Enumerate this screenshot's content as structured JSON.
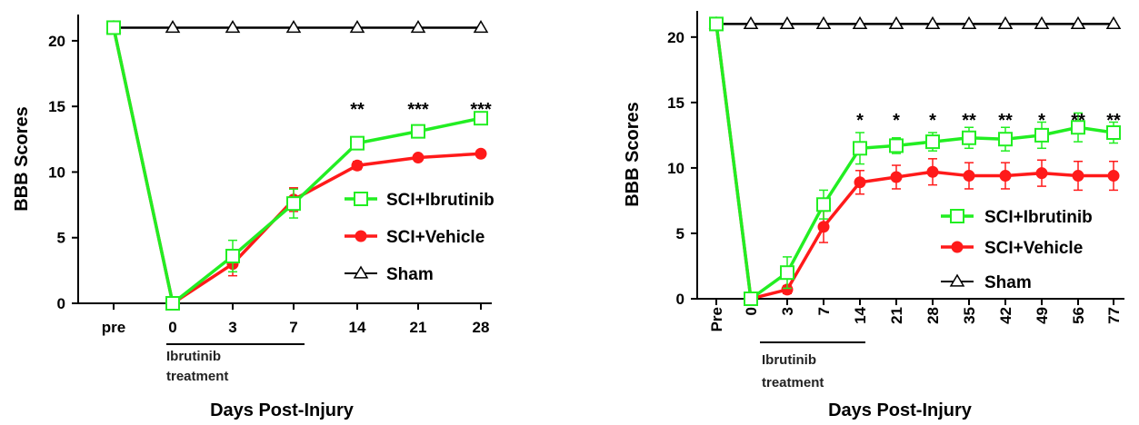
{
  "colors": {
    "ibrutinib": "#22ee22",
    "vehicle": "#ff1a1a",
    "sham": "#000000"
  },
  "chart_data": [
    {
      "type": "line",
      "ylabel": "BBB Scores",
      "xlabel": "Days Post-Injury",
      "ylim": [
        0,
        22
      ],
      "yticks": [
        0,
        5,
        10,
        15,
        20
      ],
      "categories": [
        "pre",
        "0",
        "3",
        "7",
        "14",
        "21",
        "28"
      ],
      "treatment_label": [
        "Ibrutinib",
        "treatment"
      ],
      "series": [
        {
          "name": "Sham",
          "marker": "open-triangle",
          "values": [
            21,
            21,
            21,
            21,
            21,
            21,
            21
          ]
        },
        {
          "name": "SCI+Vehicle",
          "marker": "filled-circle",
          "values": [
            21,
            0,
            3.0,
            7.9,
            10.5,
            11.1,
            11.4
          ],
          "errors": [
            0,
            0,
            0.9,
            0.9,
            0.3,
            0.2,
            0.2
          ]
        },
        {
          "name": "SCI+Ibrutinib",
          "marker": "open-square",
          "values": [
            21,
            0,
            3.6,
            7.6,
            12.2,
            13.1,
            14.1
          ],
          "errors": [
            0,
            0,
            1.2,
            1.1,
            0.3,
            0.3,
            0.2
          ]
        }
      ],
      "significance": [
        {
          "category": "14",
          "label": "**"
        },
        {
          "category": "21",
          "label": "***"
        },
        {
          "category": "28",
          "label": "***"
        }
      ],
      "legend_order": [
        "SCI+Ibrutinib",
        "SCI+Vehicle",
        "Sham"
      ]
    },
    {
      "type": "line",
      "ylabel": "BBB Scores",
      "xlabel": "Days Post-Injury",
      "ylim": [
        0,
        22
      ],
      "yticks": [
        0,
        5,
        10,
        15,
        20
      ],
      "categories": [
        "Pre",
        "0",
        "3",
        "7",
        "14",
        "21",
        "28",
        "35",
        "42",
        "49",
        "56",
        "77"
      ],
      "treatment_label": [
        "Ibrutinib",
        "treatment"
      ],
      "series": [
        {
          "name": "Sham",
          "marker": "open-triangle",
          "values": [
            21,
            21,
            21,
            21,
            21,
            21,
            21,
            21,
            21,
            21,
            21,
            21
          ]
        },
        {
          "name": "SCI+Vehicle",
          "marker": "filled-circle",
          "values": [
            21,
            0,
            0.7,
            5.5,
            8.9,
            9.3,
            9.7,
            9.4,
            9.4,
            9.6,
            9.4,
            9.4
          ],
          "errors": [
            0,
            0,
            0.3,
            1.2,
            0.9,
            0.9,
            1.0,
            1.0,
            1.0,
            1.0,
            1.1,
            1.1
          ]
        },
        {
          "name": "SCI+Ibrutinib",
          "marker": "open-square",
          "values": [
            21,
            0,
            2.0,
            7.2,
            11.5,
            11.7,
            12.0,
            12.3,
            12.2,
            12.5,
            13.1,
            12.7
          ],
          "errors": [
            0,
            0,
            1.2,
            1.1,
            1.2,
            0.6,
            0.7,
            0.8,
            0.9,
            1.0,
            1.1,
            0.8
          ]
        }
      ],
      "significance": [
        {
          "category": "14",
          "label": "*"
        },
        {
          "category": "21",
          "label": "*"
        },
        {
          "category": "28",
          "label": "*"
        },
        {
          "category": "35",
          "label": "**"
        },
        {
          "category": "42",
          "label": "**"
        },
        {
          "category": "49",
          "label": "*"
        },
        {
          "category": "56",
          "label": "**"
        },
        {
          "category": "77",
          "label": "**"
        }
      ],
      "legend_order": [
        "SCI+Ibrutinib",
        "SCI+Vehicle",
        "Sham"
      ]
    }
  ]
}
